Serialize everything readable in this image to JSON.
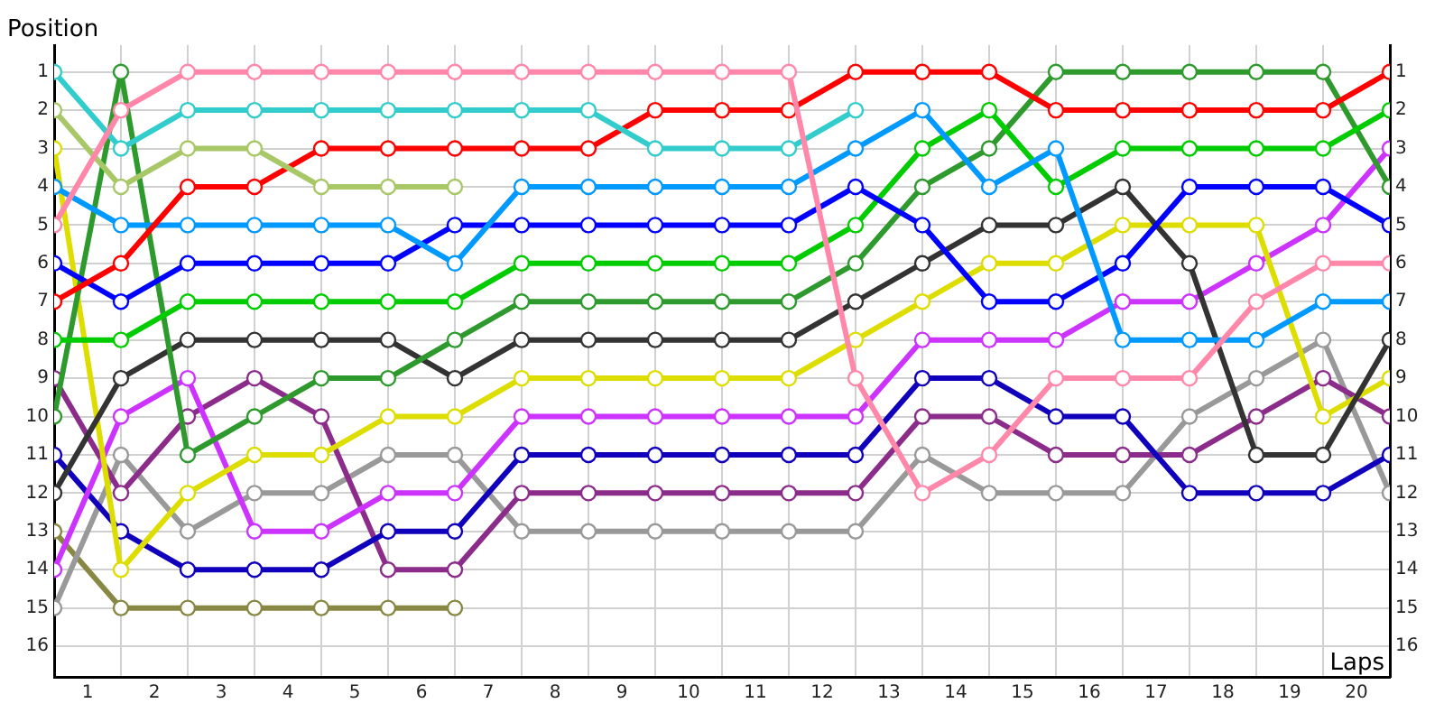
{
  "chart_data": {
    "type": "line",
    "xlabel": "Laps",
    "ylabel": "Position",
    "x": [
      0,
      1,
      2,
      3,
      4,
      5,
      6,
      7,
      8,
      9,
      10,
      11,
      12,
      13,
      14,
      15,
      16,
      17,
      18,
      19,
      20
    ],
    "xlim": [
      0,
      20
    ],
    "xticks": [
      {
        "value": 0,
        "label": null
      },
      {
        "value": 0.5,
        "label": "1"
      },
      {
        "value": 1,
        "label": null
      },
      {
        "value": 1.5,
        "label": "2"
      },
      {
        "value": 2,
        "label": null
      },
      {
        "value": 2.5,
        "label": "3"
      },
      {
        "value": 3,
        "label": null
      },
      {
        "value": 3.5,
        "label": "4"
      },
      {
        "value": 4,
        "label": null
      },
      {
        "value": 4.5,
        "label": "5"
      },
      {
        "value": 5,
        "label": null
      },
      {
        "value": 5.5,
        "label": "6"
      },
      {
        "value": 6,
        "label": null
      },
      {
        "value": 6.5,
        "label": "7"
      },
      {
        "value": 7,
        "label": null
      },
      {
        "value": 7.5,
        "label": "8"
      },
      {
        "value": 8,
        "label": null
      },
      {
        "value": 8.5,
        "label": "9"
      },
      {
        "value": 9,
        "label": null
      },
      {
        "value": 9.5,
        "label": "10"
      },
      {
        "value": 10,
        "label": null
      },
      {
        "value": 10.5,
        "label": "11"
      },
      {
        "value": 11,
        "label": null
      },
      {
        "value": 11.5,
        "label": "12"
      },
      {
        "value": 12,
        "label": null
      },
      {
        "value": 12.5,
        "label": "13"
      },
      {
        "value": 13,
        "label": null
      },
      {
        "value": 13.5,
        "label": "14"
      },
      {
        "value": 14,
        "label": null
      },
      {
        "value": 14.5,
        "label": "15"
      },
      {
        "value": 15,
        "label": null
      },
      {
        "value": 15.5,
        "label": "16"
      },
      {
        "value": 16,
        "label": null
      },
      {
        "value": 16.5,
        "label": "17"
      },
      {
        "value": 17,
        "label": null
      },
      {
        "value": 17.5,
        "label": "18"
      },
      {
        "value": 18,
        "label": null
      },
      {
        "value": 18.5,
        "label": "19"
      },
      {
        "value": 19,
        "label": null
      },
      {
        "value": 19.5,
        "label": "20"
      },
      {
        "value": 20,
        "label": null
      }
    ],
    "ylim": [
      16.8,
      0.3
    ],
    "yticks": [
      1,
      2,
      3,
      4,
      5,
      6,
      7,
      8,
      9,
      10,
      11,
      12,
      13,
      14,
      15,
      16
    ],
    "y2lim": [
      16.8,
      0.3
    ],
    "y2ticks": [
      1,
      2,
      3,
      4,
      5,
      6,
      7,
      8,
      9,
      10,
      11,
      12,
      13,
      14,
      15,
      16
    ],
    "grid": true,
    "marker": "circle",
    "line_style": "solid",
    "legend": false,
    "series": [
      {
        "color": "#ff88aa",
        "values": [
          5,
          2,
          1,
          1,
          1,
          1,
          1,
          1,
          1,
          1,
          1,
          1,
          9,
          12,
          11,
          9,
          9,
          9,
          7,
          6,
          6
        ]
      },
      {
        "color": "#33cccc",
        "values": [
          1,
          3,
          2,
          2,
          2,
          2,
          2,
          2,
          2,
          3,
          3,
          3,
          2,
          null,
          null,
          null,
          null,
          null,
          null,
          null,
          null
        ]
      },
      {
        "color": "#a8c868",
        "values": [
          2,
          4,
          3,
          3,
          4,
          4,
          4,
          null,
          null,
          null,
          null,
          null,
          null,
          null,
          null,
          null,
          null,
          null,
          null,
          null,
          null
        ]
      },
      {
        "color": "#ff0000",
        "values": [
          7,
          6,
          4,
          4,
          3,
          3,
          3,
          3,
          3,
          2,
          2,
          2,
          1,
          1,
          1,
          2,
          2,
          2,
          2,
          2,
          1
        ]
      },
      {
        "color": "#0099ff",
        "values": [
          4,
          5,
          5,
          5,
          5,
          5,
          6,
          4,
          4,
          4,
          4,
          4,
          3,
          2,
          4,
          3,
          8,
          8,
          8,
          7,
          7
        ]
      },
      {
        "color": "#0000ff",
        "values": [
          6,
          7,
          6,
          6,
          6,
          6,
          5,
          5,
          5,
          5,
          5,
          5,
          4,
          5,
          7,
          7,
          6,
          4,
          4,
          4,
          5
        ]
      },
      {
        "color": "#00cc00",
        "values": [
          8,
          8,
          7,
          7,
          7,
          7,
          7,
          6,
          6,
          6,
          6,
          6,
          5,
          3,
          2,
          4,
          3,
          3,
          3,
          3,
          2
        ]
      },
      {
        "color": "#2e9a2e",
        "values": [
          10,
          1,
          11,
          10,
          9,
          9,
          8,
          7,
          7,
          7,
          7,
          7,
          6,
          4,
          3,
          1,
          1,
          1,
          1,
          1,
          4
        ]
      },
      {
        "color": "#333333",
        "values": [
          12,
          9,
          8,
          8,
          8,
          8,
          9,
          8,
          8,
          8,
          8,
          8,
          7,
          6,
          5,
          5,
          4,
          6,
          11,
          11,
          8
        ]
      },
      {
        "color": "#dddd00",
        "values": [
          3,
          14,
          12,
          11,
          11,
          10,
          10,
          9,
          9,
          9,
          9,
          9,
          8,
          7,
          6,
          6,
          5,
          5,
          5,
          10,
          9
        ]
      },
      {
        "color": "#cc33ff",
        "values": [
          14,
          10,
          9,
          13,
          13,
          12,
          12,
          10,
          10,
          10,
          10,
          10,
          10,
          8,
          8,
          8,
          7,
          7,
          6,
          5,
          3
        ]
      },
      {
        "color": "#1100bb",
        "values": [
          11,
          13,
          14,
          14,
          14,
          13,
          13,
          11,
          11,
          11,
          11,
          11,
          11,
          9,
          9,
          10,
          10,
          12,
          12,
          12,
          11
        ]
      },
      {
        "color": "#8b2c8b",
        "values": [
          9,
          12,
          10,
          9,
          10,
          14,
          14,
          12,
          12,
          12,
          12,
          12,
          12,
          10,
          10,
          11,
          11,
          11,
          10,
          9,
          10
        ]
      },
      {
        "color": "#999999",
        "values": [
          15,
          11,
          13,
          12,
          12,
          11,
          11,
          13,
          13,
          13,
          13,
          13,
          13,
          11,
          12,
          12,
          12,
          10,
          9,
          8,
          12
        ]
      },
      {
        "color": "#888844",
        "values": [
          13,
          15,
          15,
          15,
          15,
          15,
          15,
          null,
          null,
          null,
          null,
          null,
          null,
          null,
          null,
          null,
          null,
          null,
          null,
          null,
          null
        ]
      }
    ]
  }
}
